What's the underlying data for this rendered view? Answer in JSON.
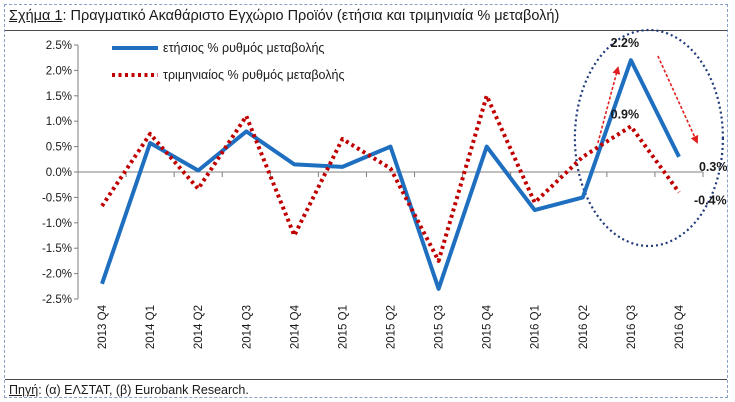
{
  "figure": {
    "label": "Σχήμα 1",
    "title_rest": ": Πραγματικό Ακαθάριστο Εγχώριο Προϊόν (ετήσια και τριμηνιαία % μεταβολή)",
    "source_label": "Πηγή",
    "source_rest": ": (α) ΕΛΣΤΑΤ, (β) Eurobank Research."
  },
  "chart_data": {
    "type": "line",
    "title": "Πραγματικό Ακαθάριστο Εγχώριο Προϊόν (ετήσια και τριμηνιαία % μεταβολή)",
    "categories": [
      "2013 Q4",
      "2014 Q1",
      "2014 Q2",
      "2014 Q3",
      "2014 Q4",
      "2015 Q1",
      "2015 Q2",
      "2015 Q3",
      "2015 Q4",
      "2016 Q1",
      "2016 Q2",
      "2016 Q3",
      "2016 Q4"
    ],
    "ylim": [
      -2.5,
      2.5
    ],
    "yticks": [
      "2.5%",
      "2.0%",
      "1.5%",
      "1.0%",
      "0.5%",
      "0.0%",
      "-0.5%",
      "-1.0%",
      "-1.5%",
      "-2.0%",
      "-2.5%"
    ],
    "legend_position": "top-left",
    "grid": false,
    "series": [
      {
        "name": "ετήσιος % ρυθμός μεταβολής",
        "style": "solid",
        "color": "#1f6fc0",
        "values": [
          -2.2,
          0.57,
          0.03,
          0.8,
          0.15,
          0.1,
          0.5,
          -2.3,
          0.5,
          -0.75,
          -0.5,
          2.2,
          0.3
        ]
      },
      {
        "name": "τριμηνιαίος % ρυθμός μεταβολής",
        "style": "dotted",
        "color": "#c00000",
        "values": [
          -0.67,
          0.75,
          -0.33,
          1.1,
          -1.25,
          0.65,
          0.07,
          -1.75,
          1.5,
          -0.6,
          0.3,
          0.9,
          -0.4
        ]
      }
    ],
    "annotations": [
      {
        "text": "2.2%",
        "category": "2016 Q3"
      },
      {
        "text": "0.9%",
        "category": "2016 Q3"
      },
      {
        "text": "0.3%",
        "category": "2016 Q4"
      },
      {
        "text": "-0.4%",
        "category": "2016 Q4"
      }
    ],
    "highlight": {
      "shape": "dotted-ellipse",
      "color": "#1f3a7a",
      "arrow_color": "#e02020"
    }
  }
}
